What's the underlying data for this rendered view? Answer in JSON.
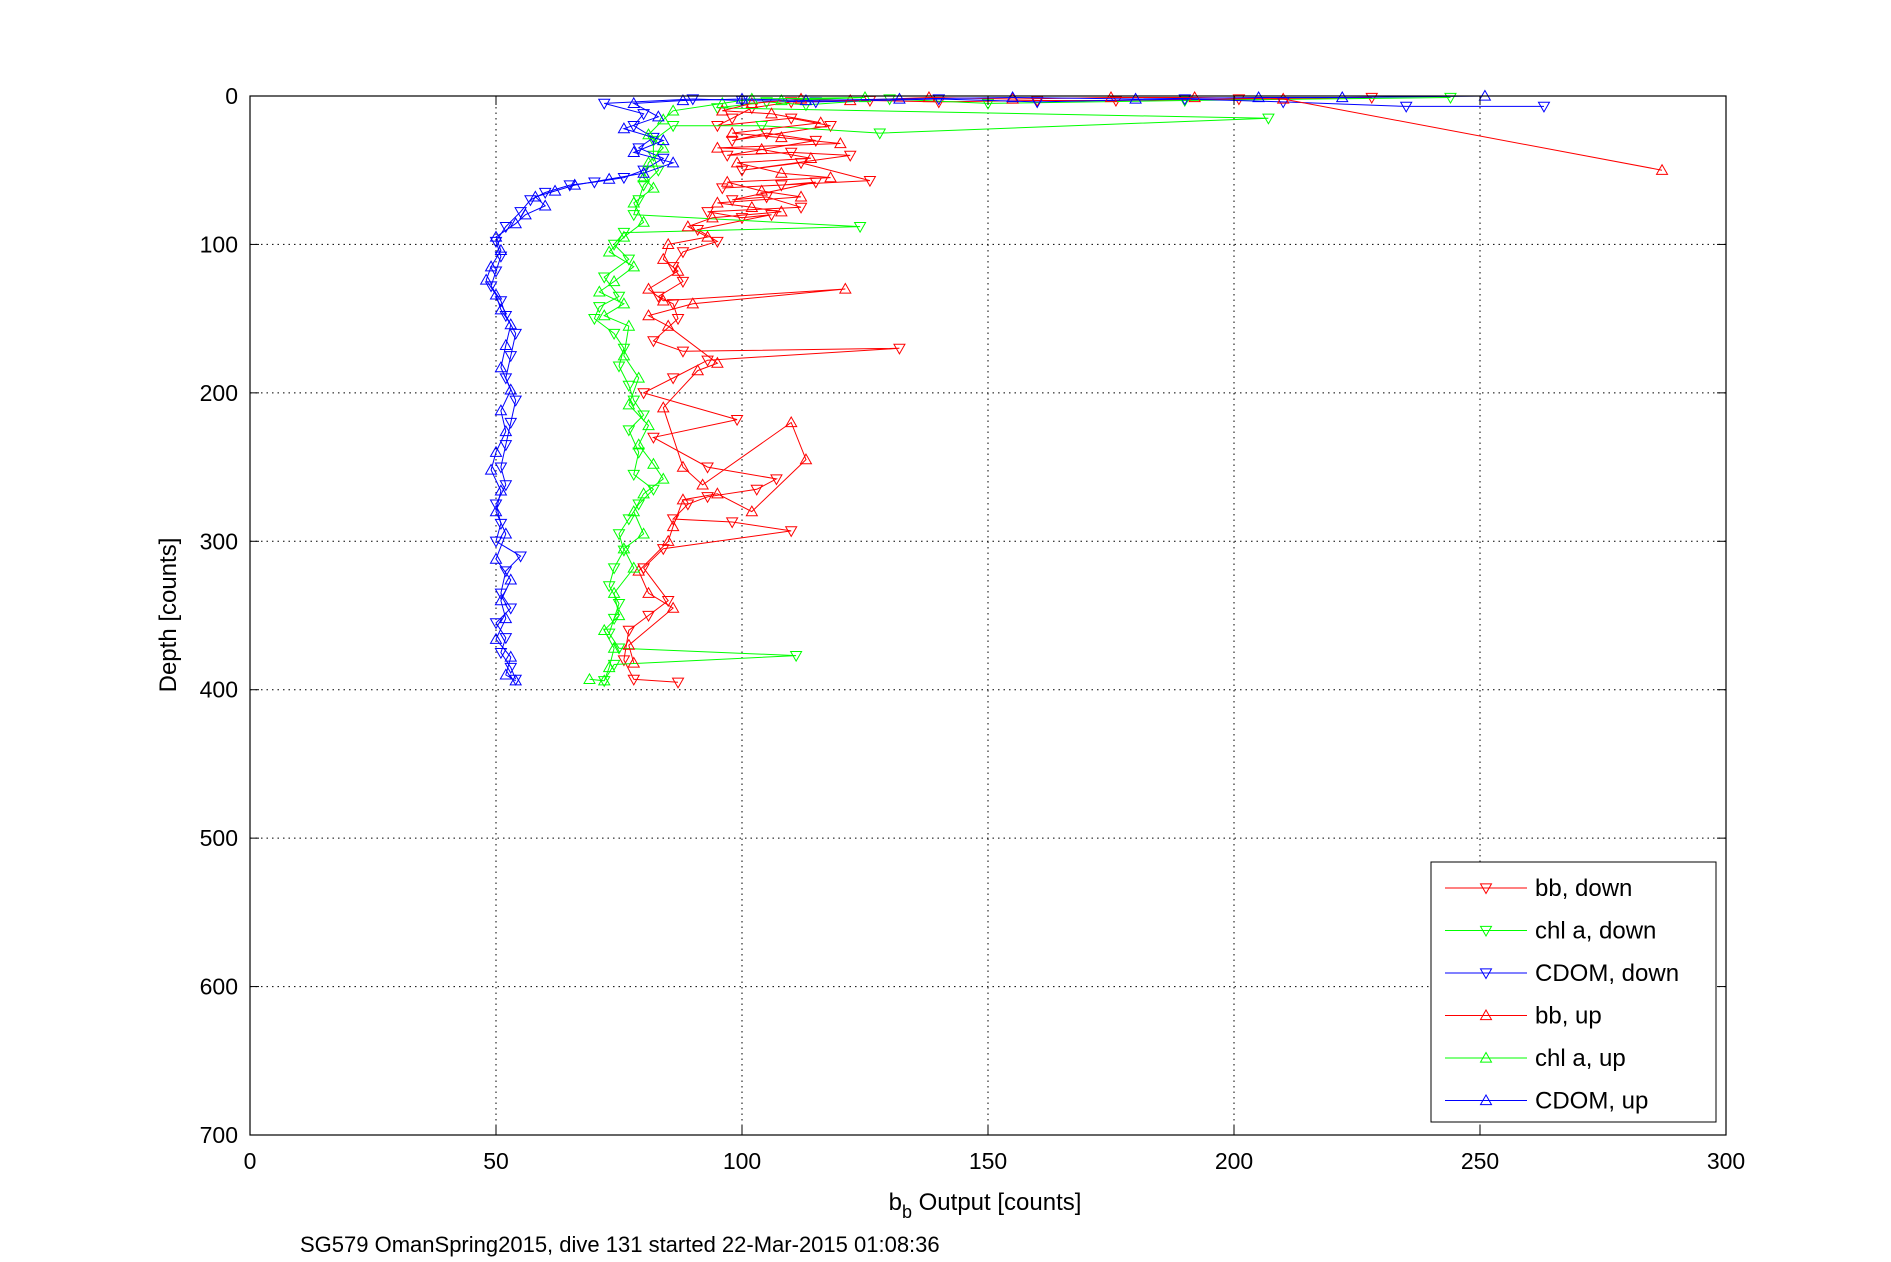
{
  "chart_data": {
    "type": "scatter",
    "xlabel_main": "b",
    "xlabel_sub": "b",
    "xlabel_rest": " Output [counts]",
    "ylabel": "Depth [counts]",
    "caption": "SG579 OmanSpring2015, dive 131 started 22-Mar-2015 01:08:36",
    "xlim": [
      0,
      300
    ],
    "ylim": [
      0,
      700
    ],
    "y_reversed": true,
    "grid": true,
    "legend_placement": "bottom-right",
    "x_ticks": [
      "0",
      "50",
      "100",
      "150",
      "200",
      "250",
      "300"
    ],
    "y_ticks": [
      "0",
      "100",
      "200",
      "300",
      "400",
      "500",
      "600",
      "700"
    ],
    "series": [
      {
        "name": "bb, down",
        "color": "#ff0000",
        "marker": "triangle-down",
        "points": [
          [
            228,
            1
          ],
          [
            201,
            2
          ],
          [
            176,
            3
          ],
          [
            160,
            3
          ],
          [
            140,
            4
          ],
          [
            126,
            3
          ],
          [
            110,
            4
          ],
          [
            102,
            8
          ],
          [
            98,
            15
          ],
          [
            95,
            20
          ],
          [
            110,
            15
          ],
          [
            118,
            20
          ],
          [
            98,
            30
          ],
          [
            105,
            25
          ],
          [
            115,
            30
          ],
          [
            97,
            40
          ],
          [
            110,
            38
          ],
          [
            122,
            40
          ],
          [
            100,
            50
          ],
          [
            112,
            45
          ],
          [
            126,
            57
          ],
          [
            96,
            62
          ],
          [
            108,
            60
          ],
          [
            115,
            58
          ],
          [
            98,
            70
          ],
          [
            105,
            68
          ],
          [
            112,
            75
          ],
          [
            93,
            78
          ],
          [
            100,
            82
          ],
          [
            106,
            80
          ],
          [
            91,
            90
          ],
          [
            95,
            98
          ],
          [
            88,
            105
          ],
          [
            86,
            115
          ],
          [
            88,
            125
          ],
          [
            83,
            135
          ],
          [
            86,
            140
          ],
          [
            87,
            150
          ],
          [
            82,
            165
          ],
          [
            88,
            172
          ],
          [
            132,
            170
          ],
          [
            93,
            178
          ],
          [
            86,
            190
          ],
          [
            80,
            200
          ],
          [
            99,
            218
          ],
          [
            82,
            230
          ],
          [
            93,
            250
          ],
          [
            107,
            258
          ],
          [
            103,
            265
          ],
          [
            93,
            270
          ],
          [
            89,
            275
          ],
          [
            86,
            285
          ],
          [
            98,
            287
          ],
          [
            110,
            293
          ],
          [
            84,
            305
          ],
          [
            80,
            318
          ],
          [
            85,
            340
          ],
          [
            81,
            350
          ],
          [
            77,
            360
          ],
          [
            76,
            380
          ],
          [
            78,
            393
          ],
          [
            87,
            395
          ]
        ]
      },
      {
        "name": "chl a, down",
        "color": "#00ff00",
        "marker": "triangle-down",
        "points": [
          [
            244,
            1
          ],
          [
            190,
            3
          ],
          [
            150,
            5
          ],
          [
            130,
            2
          ],
          [
            113,
            6
          ],
          [
            105,
            4
          ],
          [
            95,
            8
          ],
          [
            207,
            15
          ],
          [
            128,
            25
          ],
          [
            104,
            20
          ],
          [
            86,
            20
          ],
          [
            82,
            30
          ],
          [
            82,
            40
          ],
          [
            83,
            50
          ],
          [
            80,
            60
          ],
          [
            79,
            70
          ],
          [
            78,
            80
          ],
          [
            124,
            88
          ],
          [
            76,
            92
          ],
          [
            74,
            100
          ],
          [
            77,
            110
          ],
          [
            72,
            122
          ],
          [
            75,
            135
          ],
          [
            71,
            142
          ],
          [
            70,
            150
          ],
          [
            74,
            160
          ],
          [
            76,
            170
          ],
          [
            75,
            182
          ],
          [
            77,
            195
          ],
          [
            78,
            205
          ],
          [
            80,
            215
          ],
          [
            77,
            225
          ],
          [
            79,
            240
          ],
          [
            78,
            255
          ],
          [
            82,
            265
          ],
          [
            79,
            275
          ],
          [
            77,
            285
          ],
          [
            75,
            295
          ],
          [
            76,
            306
          ],
          [
            74,
            318
          ],
          [
            73,
            330
          ],
          [
            75,
            342
          ],
          [
            74,
            352
          ],
          [
            73,
            362
          ],
          [
            75,
            372
          ],
          [
            111,
            377
          ],
          [
            74,
            383
          ],
          [
            72,
            394
          ]
        ]
      },
      {
        "name": "CDOM, down",
        "color": "#0000ff",
        "marker": "triangle-down",
        "points": [
          [
            263,
            7
          ],
          [
            235,
            7
          ],
          [
            210,
            4
          ],
          [
            190,
            2
          ],
          [
            160,
            4
          ],
          [
            140,
            2
          ],
          [
            115,
            4
          ],
          [
            100,
            3
          ],
          [
            90,
            2
          ],
          [
            72,
            5
          ],
          [
            80,
            12
          ],
          [
            78,
            20
          ],
          [
            82,
            28
          ],
          [
            79,
            35
          ],
          [
            84,
            42
          ],
          [
            80,
            50
          ],
          [
            76,
            55
          ],
          [
            70,
            58
          ],
          [
            65,
            60
          ],
          [
            60,
            65
          ],
          [
            57,
            70
          ],
          [
            55,
            78
          ],
          [
            52,
            88
          ],
          [
            50,
            98
          ],
          [
            51,
            108
          ],
          [
            50,
            118
          ],
          [
            49,
            128
          ],
          [
            51,
            138
          ],
          [
            52,
            148
          ],
          [
            54,
            160
          ],
          [
            53,
            175
          ],
          [
            52,
            190
          ],
          [
            54,
            205
          ],
          [
            53,
            220
          ],
          [
            52,
            235
          ],
          [
            51,
            250
          ],
          [
            52,
            262
          ],
          [
            50,
            275
          ],
          [
            51,
            288
          ],
          [
            50,
            300
          ],
          [
            55,
            310
          ],
          [
            52,
            320
          ],
          [
            51,
            335
          ],
          [
            53,
            345
          ],
          [
            50,
            355
          ],
          [
            52,
            365
          ],
          [
            51,
            375
          ],
          [
            53,
            385
          ],
          [
            54,
            393
          ]
        ]
      },
      {
        "name": "bb, up",
        "color": "#ff0000",
        "marker": "triangle-up",
        "points": [
          [
            287,
            50
          ],
          [
            210,
            2
          ],
          [
            192,
            1
          ],
          [
            175,
            1
          ],
          [
            155,
            2
          ],
          [
            138,
            1
          ],
          [
            122,
            3
          ],
          [
            112,
            2
          ],
          [
            102,
            5
          ],
          [
            96,
            10
          ],
          [
            106,
            12
          ],
          [
            116,
            18
          ],
          [
            98,
            25
          ],
          [
            108,
            28
          ],
          [
            120,
            32
          ],
          [
            95,
            35
          ],
          [
            104,
            36
          ],
          [
            114,
            42
          ],
          [
            99,
            45
          ],
          [
            108,
            52
          ],
          [
            118,
            55
          ],
          [
            97,
            58
          ],
          [
            104,
            64
          ],
          [
            112,
            68
          ],
          [
            95,
            72
          ],
          [
            102,
            75
          ],
          [
            108,
            78
          ],
          [
            94,
            82
          ],
          [
            89,
            88
          ],
          [
            93,
            95
          ],
          [
            85,
            100
          ],
          [
            84,
            110
          ],
          [
            87,
            118
          ],
          [
            81,
            130
          ],
          [
            84,
            138
          ],
          [
            121,
            130
          ],
          [
            90,
            140
          ],
          [
            81,
            148
          ],
          [
            85,
            155
          ],
          [
            95,
            180
          ],
          [
            91,
            185
          ],
          [
            84,
            210
          ],
          [
            88,
            250
          ],
          [
            92,
            262
          ],
          [
            110,
            220
          ],
          [
            113,
            245
          ],
          [
            102,
            280
          ],
          [
            95,
            268
          ],
          [
            88,
            272
          ],
          [
            86,
            290
          ],
          [
            85,
            300
          ],
          [
            79,
            320
          ],
          [
            81,
            335
          ],
          [
            86,
            345
          ],
          [
            77,
            370
          ],
          [
            78,
            382
          ]
        ]
      },
      {
        "name": "chl a, up",
        "color": "#00ff00",
        "marker": "triangle-up",
        "points": [
          [
            108,
            3
          ],
          [
            125,
            1
          ],
          [
            102,
            2
          ],
          [
            96,
            5
          ],
          [
            86,
            10
          ],
          [
            84,
            16
          ],
          [
            81,
            26
          ],
          [
            84,
            35
          ],
          [
            81,
            45
          ],
          [
            80,
            55
          ],
          [
            82,
            62
          ],
          [
            78,
            72
          ],
          [
            80,
            85
          ],
          [
            76,
            95
          ],
          [
            73,
            105
          ],
          [
            78,
            115
          ],
          [
            74,
            125
          ],
          [
            71,
            132
          ],
          [
            76,
            140
          ],
          [
            72,
            148
          ],
          [
            77,
            155
          ],
          [
            76,
            175
          ],
          [
            79,
            190
          ],
          [
            77,
            208
          ],
          [
            81,
            222
          ],
          [
            79,
            235
          ],
          [
            82,
            248
          ],
          [
            84,
            258
          ],
          [
            80,
            268
          ],
          [
            78,
            280
          ],
          [
            80,
            295
          ],
          [
            76,
            305
          ],
          [
            78,
            318
          ],
          [
            74,
            335
          ],
          [
            75,
            350
          ],
          [
            72,
            360
          ],
          [
            74,
            372
          ],
          [
            73,
            385
          ],
          [
            72,
            394
          ],
          [
            69,
            393
          ]
        ]
      },
      {
        "name": "CDOM, up",
        "color": "#0000ff",
        "marker": "triangle-up",
        "points": [
          [
            251,
            0
          ],
          [
            222,
            1
          ],
          [
            205,
            1
          ],
          [
            180,
            2
          ],
          [
            155,
            1
          ],
          [
            132,
            2
          ],
          [
            113,
            3
          ],
          [
            100,
            2
          ],
          [
            88,
            3
          ],
          [
            78,
            5
          ],
          [
            83,
            14
          ],
          [
            76,
            22
          ],
          [
            84,
            30
          ],
          [
            78,
            38
          ],
          [
            86,
            45
          ],
          [
            80,
            52
          ],
          [
            73,
            56
          ],
          [
            66,
            60
          ],
          [
            62,
            64
          ],
          [
            58,
            68
          ],
          [
            60,
            74
          ],
          [
            56,
            80
          ],
          [
            54,
            86
          ],
          [
            50,
            95
          ],
          [
            51,
            104
          ],
          [
            49,
            115
          ],
          [
            48,
            124
          ],
          [
            50,
            134
          ],
          [
            51,
            144
          ],
          [
            53,
            154
          ],
          [
            52,
            168
          ],
          [
            51,
            183
          ],
          [
            53,
            198
          ],
          [
            51,
            212
          ],
          [
            52,
            226
          ],
          [
            50,
            240
          ],
          [
            49,
            252
          ],
          [
            51,
            266
          ],
          [
            50,
            280
          ],
          [
            52,
            295
          ],
          [
            50,
            312
          ],
          [
            53,
            326
          ],
          [
            51,
            340
          ],
          [
            52,
            352
          ],
          [
            50,
            366
          ],
          [
            53,
            378
          ],
          [
            52,
            390
          ],
          [
            54,
            394
          ]
        ]
      }
    ]
  }
}
